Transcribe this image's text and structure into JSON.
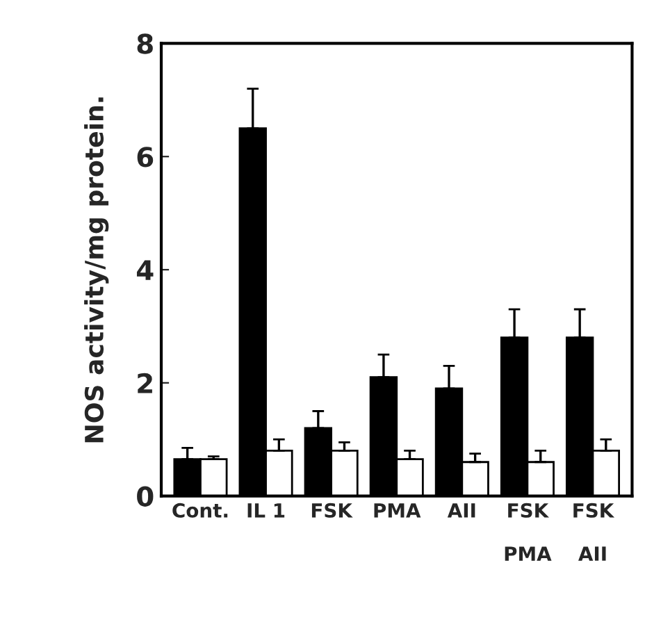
{
  "chart_data": {
    "type": "bar",
    "ylabel": "NOS activity/mg protein.",
    "categories": [
      "Cont.",
      "IL 1",
      "FSK",
      "PMA",
      "AII",
      "FSK\n\nPMA",
      "FSK\n\nAII"
    ],
    "series": [
      {
        "color": "#000000",
        "values": [
          0.65,
          6.5,
          1.2,
          2.1,
          1.9,
          2.8,
          2.8
        ],
        "errors": [
          [
            0.65,
            0.85
          ],
          [
            6.5,
            7.2
          ],
          [
            1.2,
            1.5
          ],
          [
            2.1,
            2.5
          ],
          [
            1.9,
            2.3
          ],
          [
            2.8,
            3.3
          ],
          [
            2.8,
            3.3
          ]
        ]
      },
      {
        "color": "#ffffff",
        "values": [
          0.65,
          0.8,
          0.8,
          0.65,
          0.6,
          0.6,
          0.8
        ],
        "errors": [
          [
            0.65,
            0.7
          ],
          [
            0.8,
            1.0
          ],
          [
            0.8,
            0.95
          ],
          [
            0.65,
            0.8
          ],
          [
            0.6,
            0.75
          ],
          [
            0.6,
            0.8
          ],
          [
            0.8,
            1.0
          ]
        ]
      }
    ],
    "ylim": [
      0,
      8
    ],
    "yticks": [
      0,
      2,
      4,
      6,
      8
    ],
    "grid": false
  }
}
